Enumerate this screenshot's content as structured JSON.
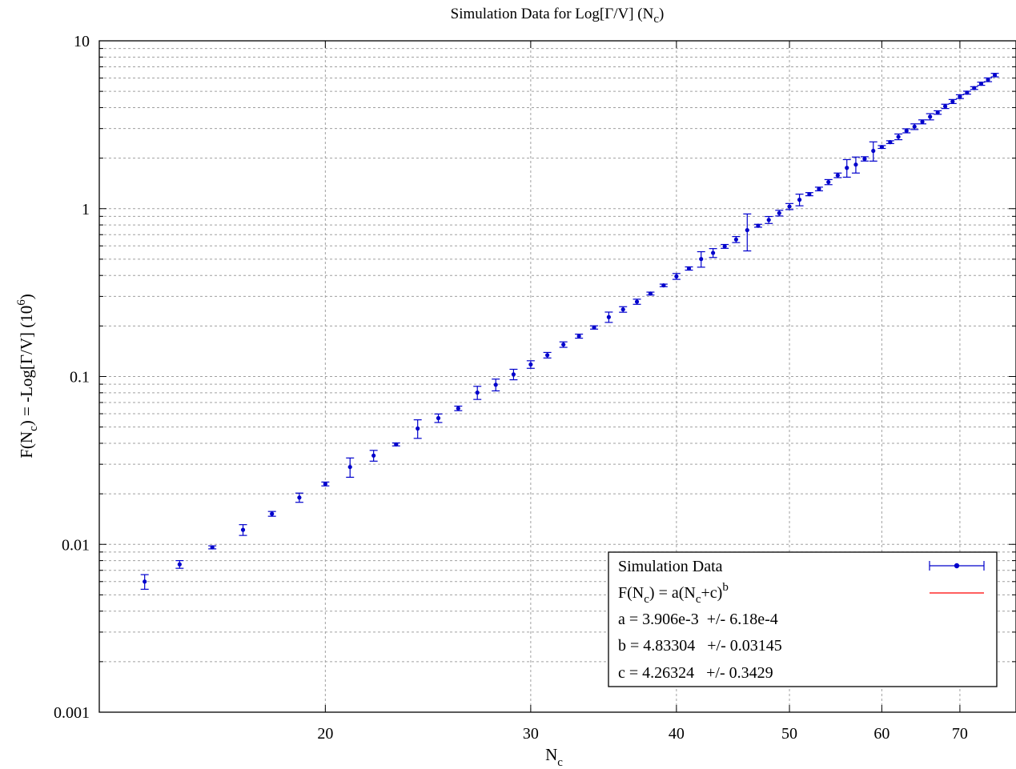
{
  "chart_data": {
    "type": "scatter",
    "title": "Simulation Data for Log[Γ/V] (N",
    "title_sub": "c",
    "title_end": ")",
    "xlabel": "N",
    "xlabel_sub": "c",
    "ylabel_parts": [
      "F(N",
      "c",
      ") = -Log[Γ/V] (10",
      "6",
      ")"
    ],
    "x_scale": "log",
    "y_scale": "log",
    "xlim": [
      12.8,
      78.2
    ],
    "ylim": [
      0.001,
      10
    ],
    "grid": true,
    "x_ticks": [
      20,
      30,
      40,
      50,
      60,
      70
    ],
    "x_tick_labels": [
      "20",
      "30",
      "40",
      "50",
      "60",
      "70"
    ],
    "y_ticks": [
      0.001,
      0.01,
      0.1,
      1,
      10
    ],
    "y_tick_labels": [
      "0.001",
      "0.01",
      "0.1",
      "1",
      "10"
    ],
    "legend_position": "bottom-right",
    "colors": {
      "data": "#0000cc",
      "fit": "#ff0000",
      "grid": "#a0a0a0"
    },
    "series": [
      {
        "name": "Simulation Data",
        "kind": "points-with-errorbars",
        "x": [
          14,
          15,
          16,
          17,
          18,
          19,
          20,
          21,
          22,
          23,
          24,
          25,
          26,
          27,
          28,
          29,
          30,
          31,
          32,
          33,
          34,
          35,
          36,
          37,
          38,
          39,
          40,
          41,
          42,
          43,
          44,
          45,
          46,
          47,
          48,
          49,
          50,
          51,
          52,
          53,
          54,
          55,
          56,
          57,
          58,
          59,
          60,
          61,
          62,
          63,
          64,
          65,
          66,
          67,
          68,
          69,
          70,
          71,
          72,
          73,
          74,
          75
        ],
        "y": [
          0.006,
          0.0076,
          0.0096,
          0.0122,
          0.0152,
          0.019,
          0.0229,
          0.0289,
          0.0338,
          0.0394,
          0.049,
          0.0565,
          0.0646,
          0.0802,
          0.0893,
          0.103,
          0.118,
          0.134,
          0.155,
          0.174,
          0.196,
          0.226,
          0.251,
          0.279,
          0.312,
          0.349,
          0.395,
          0.44,
          0.501,
          0.545,
          0.596,
          0.655,
          0.745,
          0.791,
          0.857,
          0.941,
          1.03,
          1.13,
          1.22,
          1.31,
          1.44,
          1.58,
          1.75,
          1.83,
          1.98,
          2.21,
          2.33,
          2.49,
          2.68,
          2.91,
          3.08,
          3.29,
          3.53,
          3.74,
          4.07,
          4.35,
          4.65,
          4.91,
          5.23,
          5.55,
          5.86,
          6.25
        ],
        "y_err": [
          0.0006,
          0.0004,
          0.0002,
          0.0009,
          0.0005,
          0.0012,
          0.0006,
          0.0038,
          0.0025,
          0.0008,
          0.0062,
          0.0033,
          0.002,
          0.0072,
          0.0072,
          0.0074,
          0.0061,
          0.0051,
          0.0058,
          0.0048,
          0.0044,
          0.016,
          0.0095,
          0.0098,
          0.0062,
          0.0061,
          0.0159,
          0.0098,
          0.053,
          0.0331,
          0.0157,
          0.027,
          0.185,
          0.0158,
          0.041,
          0.0367,
          0.0429,
          0.09,
          0.0265,
          0.0329,
          0.05,
          0.0497,
          0.21,
          0.2,
          0.0585,
          0.29,
          0.045,
          0.048,
          0.105,
          0.08,
          0.12,
          0.0896,
          0.15,
          0.09,
          0.12,
          0.12,
          0.12,
          0.1,
          0.1,
          0.12,
          0.15,
          0.15
        ]
      },
      {
        "name": "F(N",
        "name_sub": "c",
        "name_mid": ") = a(N",
        "name_sub2": "c",
        "name_end": "+c)",
        "name_sup": "b",
        "kind": "fit-line",
        "a": 0.003906,
        "b": 4.83304,
        "c": 4.26324
      }
    ],
    "legend_stats": [
      "a = 3.906e-3  +/- 6.18e-4",
      "b = 4.83304   +/- 0.03145",
      "c = 4.26324   +/- 0.3429"
    ]
  }
}
